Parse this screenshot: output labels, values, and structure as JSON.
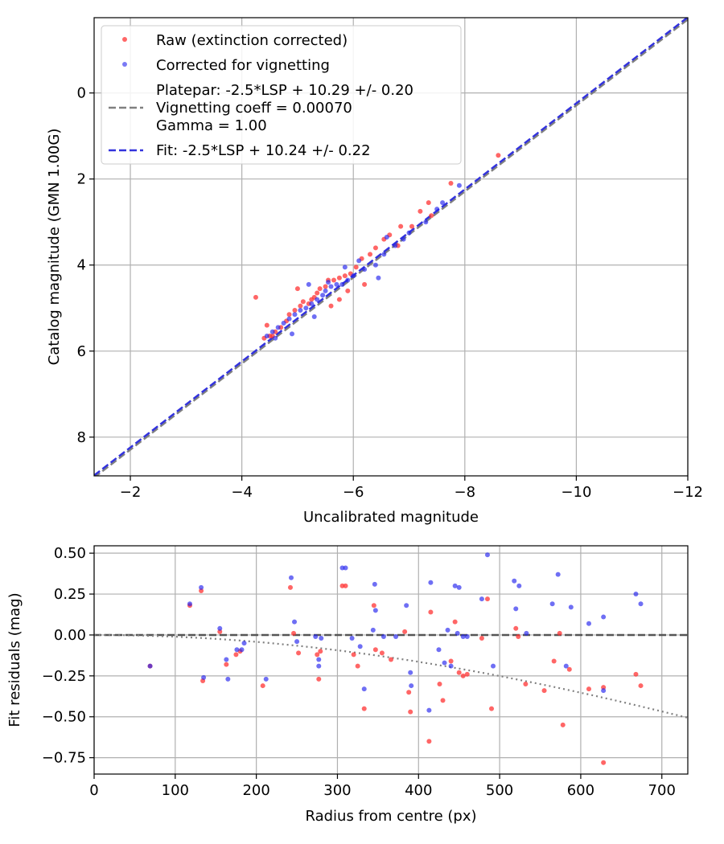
{
  "chart_data": [
    {
      "type": "scatter",
      "title": "",
      "xlabel": "Uncalibrated magnitude",
      "ylabel": "Catalog magnitude (GMN 1.00G)",
      "xlim": [
        -1.35,
        -12.0
      ],
      "ylim": [
        8.9,
        -1.75
      ],
      "xticks": [
        -2,
        -4,
        -6,
        -8,
        -10,
        -12
      ],
      "xtick_labels": [
        "−2",
        "−4",
        "−6",
        "−8",
        "−10",
        "−12"
      ],
      "yticks": [
        0,
        2,
        4,
        6,
        8
      ],
      "ytick_labels": [
        "0",
        "2",
        "4",
        "6",
        "8"
      ],
      "grid": true,
      "legend": {
        "placement": "top-left",
        "entries": [
          {
            "key": "raw",
            "label": "Raw (extinction corrected)"
          },
          {
            "key": "corrected",
            "label": "Corrected for vignetting"
          },
          {
            "key": "platepar",
            "label_lines": [
              "Platepar: -2.5*LSP + 10.29 +/- 0.20",
              "Vignetting coeff = 0.00070",
              "Gamma = 1.00"
            ]
          },
          {
            "key": "fit",
            "label": "Fit: -2.5*LSP + 10.24 +/- 0.22"
          }
        ]
      },
      "lines": [
        {
          "key": "platepar",
          "slope": 1.0,
          "intercept": 10.29,
          "color": "#808080",
          "style": "dashed"
        },
        {
          "key": "fit",
          "slope": 1.0,
          "intercept": 10.24,
          "color": "#3333dd",
          "style": "dashed"
        }
      ],
      "series": [
        {
          "name": "Raw (extinction corrected)",
          "color": "#ff3333",
          "points": [
            [
              -8.6,
              1.45
            ],
            [
              -7.75,
              2.1
            ],
            [
              -7.35,
              2.55
            ],
            [
              -7.2,
              2.75
            ],
            [
              -7.05,
              3.1
            ],
            [
              -6.85,
              3.1
            ],
            [
              -6.65,
              3.3
            ],
            [
              -6.55,
              3.4
            ],
            [
              -6.4,
              3.6
            ],
            [
              -6.3,
              3.75
            ],
            [
              -6.15,
              3.85
            ],
            [
              -6.05,
              4.05
            ],
            [
              -5.95,
              4.2
            ],
            [
              -5.85,
              4.25
            ],
            [
              -5.75,
              4.3
            ],
            [
              -5.65,
              4.35
            ],
            [
              -5.55,
              4.35
            ],
            [
              -5.5,
              4.5
            ],
            [
              -5.4,
              4.55
            ],
            [
              -5.35,
              4.65
            ],
            [
              -5.3,
              4.75
            ],
            [
              -5.25,
              4.8
            ],
            [
              -5.2,
              4.9
            ],
            [
              -5.1,
              4.85
            ],
            [
              -5.05,
              4.95
            ],
            [
              -4.95,
              5.05
            ],
            [
              -4.85,
              5.15
            ],
            [
              -4.8,
              5.3
            ],
            [
              -4.7,
              5.45
            ],
            [
              -4.6,
              5.55
            ],
            [
              -4.5,
              5.65
            ],
            [
              -4.4,
              5.7
            ],
            [
              -4.25,
              4.75
            ],
            [
              -4.55,
              5.65
            ],
            [
              -5.0,
              4.55
            ],
            [
              -5.75,
              4.8
            ],
            [
              -6.8,
              3.55
            ],
            [
              -7.4,
              2.85
            ],
            [
              -6.2,
              4.45
            ],
            [
              -5.9,
              4.6
            ],
            [
              -5.6,
              4.95
            ],
            [
              -4.45,
              5.4
            ]
          ]
        },
        {
          "name": "Corrected for vignetting",
          "color": "#2222ee",
          "points": [
            [
              -7.9,
              2.15
            ],
            [
              -7.5,
              2.7
            ],
            [
              -7.3,
              3.0
            ],
            [
              -7.0,
              3.25
            ],
            [
              -6.75,
              3.55
            ],
            [
              -6.55,
              3.75
            ],
            [
              -6.4,
              4.0
            ],
            [
              -6.2,
              4.1
            ],
            [
              -6.0,
              4.25
            ],
            [
              -5.9,
              4.35
            ],
            [
              -5.8,
              4.45
            ],
            [
              -5.7,
              4.45
            ],
            [
              -5.6,
              4.5
            ],
            [
              -5.5,
              4.6
            ],
            [
              -5.45,
              4.7
            ],
            [
              -5.35,
              4.8
            ],
            [
              -5.25,
              4.9
            ],
            [
              -5.15,
              5.0
            ],
            [
              -5.05,
              5.05
            ],
            [
              -4.95,
              5.15
            ],
            [
              -4.85,
              5.25
            ],
            [
              -4.75,
              5.35
            ],
            [
              -4.65,
              5.45
            ],
            [
              -4.55,
              5.55
            ],
            [
              -4.45,
              5.65
            ],
            [
              -5.55,
              4.4
            ],
            [
              -6.1,
              3.9
            ],
            [
              -6.9,
              3.4
            ],
            [
              -7.6,
              2.55
            ],
            [
              -5.85,
              4.05
            ],
            [
              -4.9,
              5.6
            ],
            [
              -6.45,
              4.3
            ],
            [
              -5.2,
              4.45
            ],
            [
              -6.6,
              3.35
            ],
            [
              -5.3,
              5.2
            ],
            [
              -4.6,
              5.7
            ]
          ]
        }
      ]
    },
    {
      "type": "scatter",
      "title": "",
      "xlabel": "Radius from centre (px)",
      "ylabel": "Fit residuals (mag)",
      "xlim": [
        0,
        732
      ],
      "ylim": [
        -0.85,
        0.545
      ],
      "xticks": [
        0,
        100,
        200,
        300,
        400,
        500,
        600,
        700
      ],
      "xtick_labels": [
        "0",
        "100",
        "200",
        "300",
        "400",
        "500",
        "600",
        "700"
      ],
      "yticks": [
        0.5,
        0.25,
        0.0,
        -0.25,
        -0.5,
        -0.75
      ],
      "ytick_labels": [
        "0.50",
        "0.25",
        "0.00",
        "−0.25",
        "−0.50",
        "−0.75"
      ],
      "grid": true,
      "zero_line": {
        "y": 0.0,
        "color": "#555555",
        "style": "dashed"
      },
      "vignetting_curve": {
        "coeff": 0.0007,
        "color": "#808080",
        "style": "dotted"
      },
      "series": [
        {
          "name": "Raw (extinction corrected)",
          "color": "#ff3333",
          "points": [
            [
              69,
              -0.19
            ],
            [
              118,
              0.18
            ],
            [
              132,
              0.27
            ],
            [
              134,
              -0.28
            ],
            [
              155,
              0.02
            ],
            [
              163,
              -0.18
            ],
            [
              175,
              -0.12
            ],
            [
              180,
              -0.1
            ],
            [
              208,
              -0.31
            ],
            [
              242,
              0.29
            ],
            [
              246,
              0.01
            ],
            [
              252,
              -0.11
            ],
            [
              275,
              -0.12
            ],
            [
              277,
              -0.27
            ],
            [
              279,
              -0.1
            ],
            [
              306,
              0.3
            ],
            [
              310,
              0.3
            ],
            [
              320,
              -0.12
            ],
            [
              325,
              -0.19
            ],
            [
              333,
              -0.45
            ],
            [
              345,
              0.18
            ],
            [
              347,
              -0.09
            ],
            [
              355,
              -0.11
            ],
            [
              366,
              -0.15
            ],
            [
              383,
              0.02
            ],
            [
              388,
              -0.35
            ],
            [
              390,
              -0.47
            ],
            [
              413,
              -0.65
            ],
            [
              415,
              0.14
            ],
            [
              426,
              -0.3
            ],
            [
              430,
              -0.4
            ],
            [
              440,
              -0.16
            ],
            [
              445,
              0.08
            ],
            [
              450,
              -0.23
            ],
            [
              455,
              -0.25
            ],
            [
              460,
              -0.24
            ],
            [
              478,
              -0.02
            ],
            [
              485,
              0.22
            ],
            [
              490,
              -0.45
            ],
            [
              520,
              0.04
            ],
            [
              523,
              -0.01
            ],
            [
              532,
              -0.3
            ],
            [
              555,
              -0.34
            ],
            [
              567,
              -0.16
            ],
            [
              574,
              0.01
            ],
            [
              578,
              -0.55
            ],
            [
              586,
              -0.21
            ],
            [
              610,
              -0.33
            ],
            [
              628,
              -0.32
            ],
            [
              628,
              -0.78
            ],
            [
              668,
              -0.24
            ],
            [
              674,
              -0.31
            ]
          ]
        },
        {
          "name": "Corrected for vignetting",
          "color": "#2222ee",
          "points": [
            [
              69,
              -0.19
            ],
            [
              118,
              0.19
            ],
            [
              132,
              0.29
            ],
            [
              135,
              -0.26
            ],
            [
              155,
              0.04
            ],
            [
              163,
              -0.15
            ],
            [
              165,
              -0.27
            ],
            [
              176,
              -0.09
            ],
            [
              182,
              -0.09
            ],
            [
              185,
              -0.05
            ],
            [
              212,
              -0.27
            ],
            [
              243,
              0.35
            ],
            [
              247,
              0.08
            ],
            [
              250,
              -0.04
            ],
            [
              273,
              -0.01
            ],
            [
              277,
              -0.15
            ],
            [
              277,
              -0.19
            ],
            [
              280,
              -0.02
            ],
            [
              306,
              0.41
            ],
            [
              310,
              0.41
            ],
            [
              318,
              -0.02
            ],
            [
              328,
              -0.07
            ],
            [
              333,
              -0.33
            ],
            [
              344,
              0.03
            ],
            [
              346,
              0.31
            ],
            [
              347,
              0.15
            ],
            [
              357,
              -0.01
            ],
            [
              372,
              -0.01
            ],
            [
              385,
              0.18
            ],
            [
              390,
              -0.23
            ],
            [
              391,
              -0.31
            ],
            [
              413,
              -0.46
            ],
            [
              415,
              0.32
            ],
            [
              425,
              -0.09
            ],
            [
              432,
              -0.17
            ],
            [
              436,
              0.03
            ],
            [
              440,
              -0.19
            ],
            [
              445,
              0.3
            ],
            [
              448,
              0.01
            ],
            [
              450,
              0.29
            ],
            [
              455,
              -0.01
            ],
            [
              460,
              -0.01
            ],
            [
              478,
              0.22
            ],
            [
              485,
              0.49
            ],
            [
              492,
              -0.19
            ],
            [
              518,
              0.33
            ],
            [
              524,
              0.3
            ],
            [
              520,
              0.16
            ],
            [
              533,
              0.01
            ],
            [
              565,
              0.19
            ],
            [
              572,
              0.37
            ],
            [
              582,
              -0.19
            ],
            [
              588,
              0.17
            ],
            [
              610,
              0.07
            ],
            [
              628,
              0.11
            ],
            [
              628,
              -0.34
            ],
            [
              668,
              0.25
            ],
            [
              674,
              0.19
            ]
          ]
        }
      ]
    }
  ]
}
